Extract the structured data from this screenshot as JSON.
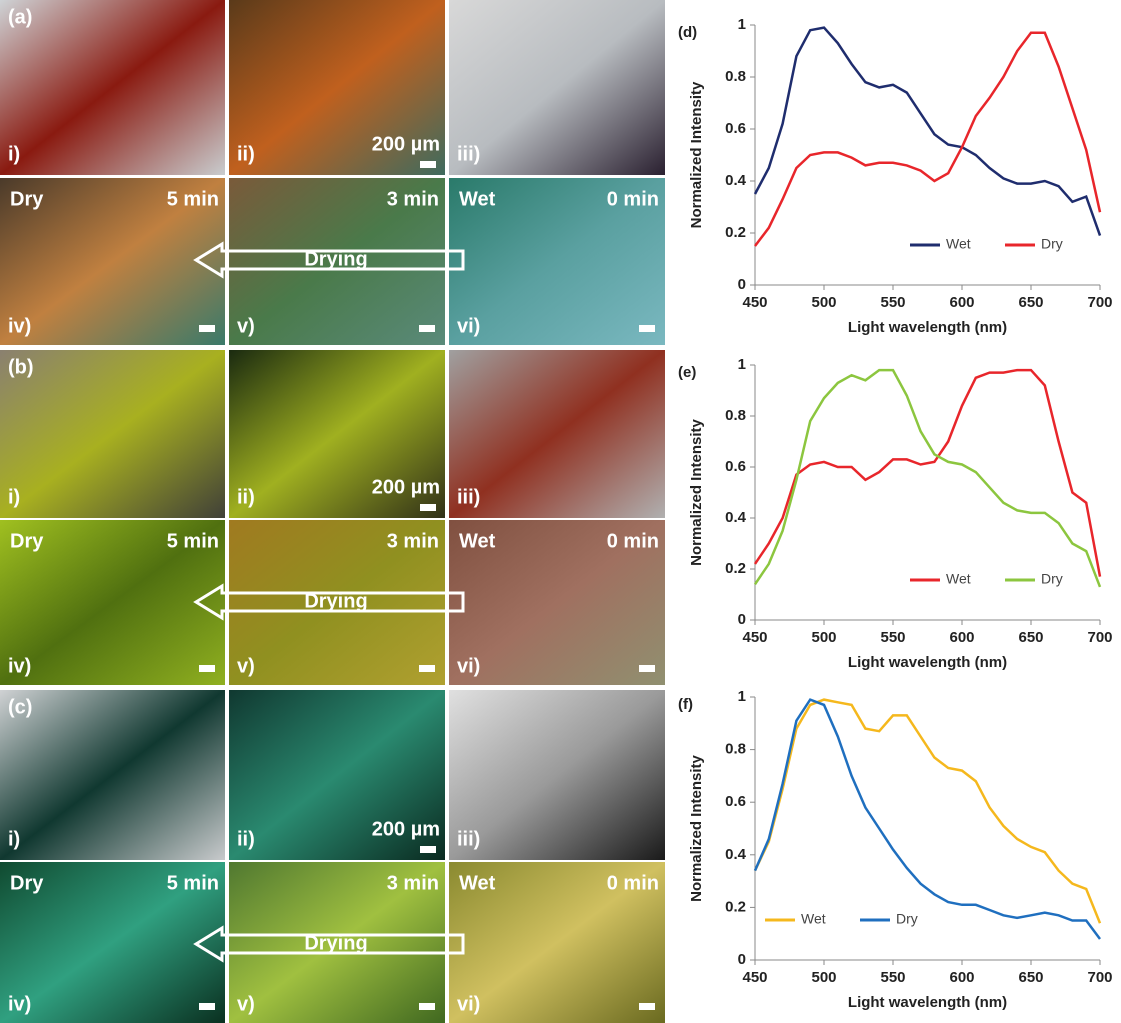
{
  "photo_groups": [
    {
      "label": "(a)",
      "top": [
        "i)",
        "ii)",
        "iii)"
      ],
      "scale": "200 µm",
      "bottom": [
        {
          "state": "Dry",
          "time": "5 min",
          "num": "iv)"
        },
        {
          "time": "3 min",
          "num": "v)"
        },
        {
          "state": "Wet",
          "time": "0 min",
          "num": "vi)"
        }
      ],
      "arrow": "Drying"
    },
    {
      "label": "(b)",
      "top": [
        "i)",
        "ii)",
        "iii)"
      ],
      "scale": "200 µm",
      "bottom": [
        {
          "state": "Dry",
          "time": "5 min",
          "num": "iv)"
        },
        {
          "time": "3 min",
          "num": "v)"
        },
        {
          "state": "Wet",
          "time": "0 min",
          "num": "vi)"
        }
      ],
      "arrow": "Drying"
    },
    {
      "label": "(c)",
      "top": [
        "i)",
        "ii)",
        "iii)"
      ],
      "scale": "200 µm",
      "bottom": [
        {
          "state": "Dry",
          "time": "5 min",
          "num": "iv)"
        },
        {
          "time": "3 min",
          "num": "v)"
        },
        {
          "state": "Wet",
          "time": "0 min",
          "num": "vi)"
        }
      ],
      "arrow": "Drying"
    }
  ],
  "chart_data": [
    {
      "type": "line",
      "title": "(d)",
      "x_label": "Light wavelength (nm)",
      "y_label": "Normalized Intensity",
      "x": [
        450,
        460,
        470,
        480,
        490,
        500,
        510,
        520,
        530,
        540,
        550,
        560,
        570,
        580,
        590,
        600,
        610,
        620,
        630,
        640,
        650,
        660,
        670,
        680,
        690,
        700
      ],
      "series": [
        {
          "name": "Wet",
          "color": "#1f2d6e",
          "values": [
            0.35,
            0.45,
            0.62,
            0.88,
            0.98,
            0.99,
            0.93,
            0.85,
            0.78,
            0.76,
            0.77,
            0.74,
            0.66,
            0.58,
            0.54,
            0.53,
            0.5,
            0.45,
            0.41,
            0.39,
            0.39,
            0.4,
            0.38,
            0.32,
            0.34,
            0.19
          ]
        },
        {
          "name": "Dry",
          "color": "#e8262b",
          "values": [
            0.15,
            0.22,
            0.33,
            0.45,
            0.5,
            0.51,
            0.51,
            0.49,
            0.46,
            0.47,
            0.47,
            0.46,
            0.44,
            0.4,
            0.43,
            0.53,
            0.65,
            0.72,
            0.8,
            0.9,
            0.97,
            0.97,
            0.84,
            0.68,
            0.52,
            0.28
          ]
        }
      ],
      "xlim": [
        450,
        700
      ],
      "xticks": [
        450,
        500,
        550,
        600,
        650,
        700
      ],
      "ylim": [
        0,
        1
      ],
      "yticks": [
        0,
        0.2,
        0.4,
        0.6,
        0.8,
        1
      ],
      "legend": "lower right",
      "grid": false
    },
    {
      "type": "line",
      "title": "(e)",
      "x_label": "Light wavelength (nm)",
      "y_label": "Normalized Intensity",
      "x": [
        450,
        460,
        470,
        480,
        490,
        500,
        510,
        520,
        530,
        540,
        550,
        560,
        570,
        580,
        590,
        600,
        610,
        620,
        630,
        640,
        650,
        660,
        670,
        680,
        690,
        700
      ],
      "series": [
        {
          "name": "Wet",
          "color": "#e8262b",
          "values": [
            0.22,
            0.3,
            0.4,
            0.57,
            0.61,
            0.62,
            0.6,
            0.6,
            0.55,
            0.58,
            0.63,
            0.63,
            0.61,
            0.62,
            0.7,
            0.84,
            0.95,
            0.97,
            0.97,
            0.98,
            0.98,
            0.92,
            0.7,
            0.5,
            0.46,
            0.17
          ]
        },
        {
          "name": "Dry",
          "color": "#8cc63f",
          "values": [
            0.14,
            0.22,
            0.35,
            0.55,
            0.78,
            0.87,
            0.93,
            0.96,
            0.94,
            0.98,
            0.98,
            0.88,
            0.74,
            0.65,
            0.62,
            0.61,
            0.58,
            0.52,
            0.46,
            0.43,
            0.42,
            0.42,
            0.38,
            0.3,
            0.27,
            0.13
          ]
        }
      ],
      "xlim": [
        450,
        700
      ],
      "xticks": [
        450,
        500,
        550,
        600,
        650,
        700
      ],
      "ylim": [
        0,
        1
      ],
      "yticks": [
        0,
        0.2,
        0.4,
        0.6,
        0.8,
        1
      ],
      "legend": "lower right",
      "grid": false
    },
    {
      "type": "line",
      "title": "(f)",
      "x_label": "Light wavelength (nm)",
      "y_label": "Normalized Intensity",
      "x": [
        450,
        460,
        470,
        480,
        490,
        500,
        510,
        520,
        530,
        540,
        550,
        560,
        570,
        580,
        590,
        600,
        610,
        620,
        630,
        640,
        650,
        660,
        670,
        680,
        690,
        700
      ],
      "series": [
        {
          "name": "Wet",
          "color": "#f5b81d",
          "values": [
            0.34,
            0.45,
            0.65,
            0.88,
            0.97,
            0.99,
            0.98,
            0.97,
            0.88,
            0.87,
            0.93,
            0.93,
            0.85,
            0.77,
            0.73,
            0.72,
            0.68,
            0.58,
            0.51,
            0.46,
            0.43,
            0.41,
            0.34,
            0.29,
            0.27,
            0.14
          ]
        },
        {
          "name": "Dry",
          "color": "#1f6fbf",
          "values": [
            0.34,
            0.46,
            0.67,
            0.91,
            0.99,
            0.97,
            0.85,
            0.7,
            0.58,
            0.5,
            0.42,
            0.35,
            0.29,
            0.25,
            0.22,
            0.21,
            0.21,
            0.19,
            0.17,
            0.16,
            0.17,
            0.18,
            0.17,
            0.15,
            0.15,
            0.08
          ]
        }
      ],
      "xlim": [
        450,
        700
      ],
      "xticks": [
        450,
        500,
        550,
        600,
        650,
        700
      ],
      "ylim": [
        0,
        1
      ],
      "yticks": [
        0,
        0.2,
        0.4,
        0.6,
        0.8,
        1
      ],
      "legend": "lower left",
      "grid": false
    }
  ]
}
